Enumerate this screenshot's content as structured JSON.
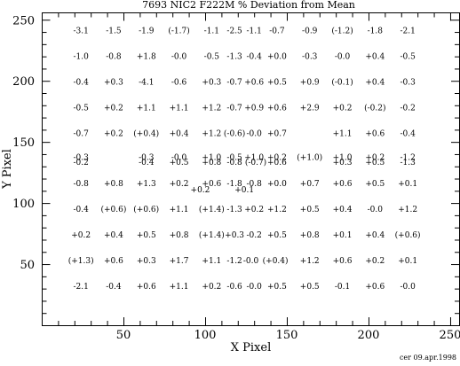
{
  "chart_data": {
    "type": "scatter",
    "title": "7693 NIC2 F222M % Deviation from Mean",
    "xlabel": "X Pixel",
    "ylabel": "Y Pixel",
    "xlim": [
      0,
      256
    ],
    "ylim": [
      0,
      256
    ],
    "xticks": [
      50,
      100,
      150,
      200,
      250
    ],
    "yticks": [
      50,
      100,
      150,
      200,
      250
    ],
    "grid": false,
    "footer": "cer 09.apr.1998",
    "points": [
      {
        "x": 24,
        "y": 241,
        "label": "-3.1"
      },
      {
        "x": 44,
        "y": 241,
        "label": "-1.5"
      },
      {
        "x": 64,
        "y": 241,
        "label": "-1.9"
      },
      {
        "x": 84,
        "y": 241,
        "label": "(-1.7)"
      },
      {
        "x": 104,
        "y": 241,
        "label": "-1.1"
      },
      {
        "x": 118,
        "y": 241,
        "label": "-2.5"
      },
      {
        "x": 130,
        "y": 241,
        "label": "-1.1"
      },
      {
        "x": 144,
        "y": 241,
        "label": "-0.7"
      },
      {
        "x": 164,
        "y": 241,
        "label": "-0.9"
      },
      {
        "x": 184,
        "y": 241,
        "label": "(-1.2)"
      },
      {
        "x": 204,
        "y": 241,
        "label": "-1.8"
      },
      {
        "x": 224,
        "y": 241,
        "label": "-2.1"
      },
      {
        "x": 24,
        "y": 220,
        "label": "-1.0"
      },
      {
        "x": 44,
        "y": 220,
        "label": "-0.8"
      },
      {
        "x": 64,
        "y": 220,
        "label": "+1.8"
      },
      {
        "x": 84,
        "y": 220,
        "label": "-0.0"
      },
      {
        "x": 104,
        "y": 220,
        "label": "-0.5"
      },
      {
        "x": 118,
        "y": 220,
        "label": "-1.3"
      },
      {
        "x": 130,
        "y": 220,
        "label": "-0.4"
      },
      {
        "x": 144,
        "y": 220,
        "label": "+0.0"
      },
      {
        "x": 164,
        "y": 220,
        "label": "-0.3"
      },
      {
        "x": 184,
        "y": 220,
        "label": "-0.0"
      },
      {
        "x": 204,
        "y": 220,
        "label": "+0.4"
      },
      {
        "x": 224,
        "y": 220,
        "label": "-0.5"
      },
      {
        "x": 24,
        "y": 199,
        "label": "-0.4"
      },
      {
        "x": 44,
        "y": 199,
        "label": "+0.3"
      },
      {
        "x": 64,
        "y": 199,
        "label": "-4.1"
      },
      {
        "x": 84,
        "y": 199,
        "label": "-0.6"
      },
      {
        "x": 104,
        "y": 199,
        "label": "+0.3"
      },
      {
        "x": 118,
        "y": 199,
        "label": "-0.7"
      },
      {
        "x": 130,
        "y": 199,
        "label": "+0.6"
      },
      {
        "x": 144,
        "y": 199,
        "label": "+0.5"
      },
      {
        "x": 164,
        "y": 199,
        "label": "+0.9"
      },
      {
        "x": 184,
        "y": 199,
        "label": "(-0.1)"
      },
      {
        "x": 204,
        "y": 199,
        "label": "+0.4"
      },
      {
        "x": 224,
        "y": 199,
        "label": "-0.3"
      },
      {
        "x": 24,
        "y": 178,
        "label": "-0.5"
      },
      {
        "x": 44,
        "y": 178,
        "label": "+0.2"
      },
      {
        "x": 64,
        "y": 178,
        "label": "+1.1"
      },
      {
        "x": 84,
        "y": 178,
        "label": "+1.1"
      },
      {
        "x": 104,
        "y": 178,
        "label": "+1.2"
      },
      {
        "x": 118,
        "y": 178,
        "label": "-0.7"
      },
      {
        "x": 130,
        "y": 178,
        "label": "+0.9"
      },
      {
        "x": 144,
        "y": 178,
        "label": "+0.6"
      },
      {
        "x": 164,
        "y": 178,
        "label": "+2.9"
      },
      {
        "x": 184,
        "y": 178,
        "label": "+0.2"
      },
      {
        "x": 204,
        "y": 178,
        "label": "(-0.2)"
      },
      {
        "x": 224,
        "y": 178,
        "label": "-0.2"
      },
      {
        "x": 24,
        "y": 157,
        "label": "-0.7"
      },
      {
        "x": 44,
        "y": 157,
        "label": "+0.2"
      },
      {
        "x": 64,
        "y": 157,
        "label": "(+0.4)"
      },
      {
        "x": 84,
        "y": 157,
        "label": "+0.4"
      },
      {
        "x": 104,
        "y": 157,
        "label": "+1.2"
      },
      {
        "x": 118,
        "y": 157,
        "label": "(-0.6)"
      },
      {
        "x": 130,
        "y": 157,
        "label": "-0.0"
      },
      {
        "x": 144,
        "y": 157,
        "label": "+0.7"
      },
      {
        "x": 184,
        "y": 157,
        "label": "+1.1"
      },
      {
        "x": 204,
        "y": 157,
        "label": "+0.6"
      },
      {
        "x": 224,
        "y": 157,
        "label": "-0.4"
      },
      {
        "x": 24,
        "y": 137.5,
        "label": "-0.3"
      },
      {
        "x": 64,
        "y": 137.5,
        "label": "-0.3"
      },
      {
        "x": 84,
        "y": 137.5,
        "label": "-0.0"
      },
      {
        "x": 104,
        "y": 137.5,
        "label": "+1.0"
      },
      {
        "x": 118,
        "y": 137.5,
        "label": "-0.5"
      },
      {
        "x": 130,
        "y": 137.5,
        "label": "+1.0"
      },
      {
        "x": 144,
        "y": 137.5,
        "label": "+0.2"
      },
      {
        "x": 164,
        "y": 137.5,
        "label": "(+1.0)"
      },
      {
        "x": 184,
        "y": 137.5,
        "label": "+1.0"
      },
      {
        "x": 204,
        "y": 137.5,
        "label": "+0.2"
      },
      {
        "x": 224,
        "y": 137.5,
        "label": "-1.2"
      },
      {
        "x": 24,
        "y": 133.5,
        "label": "-0.2"
      },
      {
        "x": 64,
        "y": 133.5,
        "label": "-0.4"
      },
      {
        "x": 84,
        "y": 133.5,
        "label": "+0.5"
      },
      {
        "x": 104,
        "y": 133.5,
        "label": "+0.8"
      },
      {
        "x": 118,
        "y": 133.5,
        "label": "-0.8"
      },
      {
        "x": 131,
        "y": 133.5,
        "label": "(-0.7)"
      },
      {
        "x": 144,
        "y": 133.5,
        "label": "+0.6"
      },
      {
        "x": 184,
        "y": 133.5,
        "label": "+0.3"
      },
      {
        "x": 204,
        "y": 133.5,
        "label": "+0.5"
      },
      {
        "x": 224,
        "y": 133.5,
        "label": "-1.3"
      },
      {
        "x": 24,
        "y": 116,
        "label": "-0.8"
      },
      {
        "x": 44,
        "y": 116,
        "label": "+0.8"
      },
      {
        "x": 64,
        "y": 116,
        "label": "+1.3"
      },
      {
        "x": 84,
        "y": 116,
        "label": "+0.2"
      },
      {
        "x": 104,
        "y": 116,
        "label": "+0.6"
      },
      {
        "x": 118,
        "y": 116,
        "label": "-1.8"
      },
      {
        "x": 130,
        "y": 116,
        "label": "-0.8"
      },
      {
        "x": 144,
        "y": 116,
        "label": "+0.0"
      },
      {
        "x": 164,
        "y": 116,
        "label": "+0.7"
      },
      {
        "x": 184,
        "y": 116,
        "label": "+0.6"
      },
      {
        "x": 204,
        "y": 116,
        "label": "+0.5"
      },
      {
        "x": 224,
        "y": 116,
        "label": "+0.1"
      },
      {
        "x": 97,
        "y": 111,
        "label": "+0.2"
      },
      {
        "x": 124,
        "y": 111,
        "label": "+0.1"
      },
      {
        "x": 24,
        "y": 95,
        "label": "-0.4"
      },
      {
        "x": 44,
        "y": 95,
        "label": "(+0.6)"
      },
      {
        "x": 64,
        "y": 95,
        "label": "(+0.6)"
      },
      {
        "x": 84,
        "y": 95,
        "label": "+1.1"
      },
      {
        "x": 104,
        "y": 95,
        "label": "(+1.4)"
      },
      {
        "x": 118,
        "y": 95,
        "label": "-1.3"
      },
      {
        "x": 130,
        "y": 95,
        "label": "+0.2"
      },
      {
        "x": 144,
        "y": 95,
        "label": "+1.2"
      },
      {
        "x": 164,
        "y": 95,
        "label": "+0.5"
      },
      {
        "x": 184,
        "y": 95,
        "label": "+0.4"
      },
      {
        "x": 204,
        "y": 95,
        "label": "-0.0"
      },
      {
        "x": 224,
        "y": 95,
        "label": "+1.2"
      },
      {
        "x": 24,
        "y": 74,
        "label": "+0.2"
      },
      {
        "x": 44,
        "y": 74,
        "label": "+0.4"
      },
      {
        "x": 64,
        "y": 74,
        "label": "+0.5"
      },
      {
        "x": 84,
        "y": 74,
        "label": "+0.8"
      },
      {
        "x": 104,
        "y": 74,
        "label": "(+1.4)"
      },
      {
        "x": 118,
        "y": 74,
        "label": "+0.3"
      },
      {
        "x": 130,
        "y": 74,
        "label": "-0.2"
      },
      {
        "x": 144,
        "y": 74,
        "label": "+0.5"
      },
      {
        "x": 164,
        "y": 74,
        "label": "+0.8"
      },
      {
        "x": 184,
        "y": 74,
        "label": "+0.1"
      },
      {
        "x": 204,
        "y": 74,
        "label": "+0.4"
      },
      {
        "x": 224,
        "y": 74,
        "label": "(+0.6)"
      },
      {
        "x": 24,
        "y": 53,
        "label": "(+1.3)"
      },
      {
        "x": 44,
        "y": 53,
        "label": "+0.6"
      },
      {
        "x": 64,
        "y": 53,
        "label": "+0.3"
      },
      {
        "x": 84,
        "y": 53,
        "label": "+1.7"
      },
      {
        "x": 104,
        "y": 53,
        "label": "+1.1"
      },
      {
        "x": 118,
        "y": 53,
        "label": "-1.2"
      },
      {
        "x": 128,
        "y": 53,
        "label": "-0.0"
      },
      {
        "x": 143,
        "y": 53,
        "label": "(+0.4)"
      },
      {
        "x": 164,
        "y": 53,
        "label": "+1.2"
      },
      {
        "x": 184,
        "y": 53,
        "label": "+0.6"
      },
      {
        "x": 204,
        "y": 53,
        "label": "+0.2"
      },
      {
        "x": 224,
        "y": 53,
        "label": "+0.1"
      },
      {
        "x": 24,
        "y": 32,
        "label": "-2.1"
      },
      {
        "x": 44,
        "y": 32,
        "label": "-0.4"
      },
      {
        "x": 64,
        "y": 32,
        "label": "+0.6"
      },
      {
        "x": 84,
        "y": 32,
        "label": "+1.1"
      },
      {
        "x": 104,
        "y": 32,
        "label": "+0.2"
      },
      {
        "x": 118,
        "y": 32,
        "label": "-0.6"
      },
      {
        "x": 130,
        "y": 32,
        "label": "-0.0"
      },
      {
        "x": 144,
        "y": 32,
        "label": "+0.5"
      },
      {
        "x": 164,
        "y": 32,
        "label": "+0.5"
      },
      {
        "x": 184,
        "y": 32,
        "label": "-0.1"
      },
      {
        "x": 204,
        "y": 32,
        "label": "+0.6"
      },
      {
        "x": 224,
        "y": 32,
        "label": "-0.0"
      }
    ]
  }
}
